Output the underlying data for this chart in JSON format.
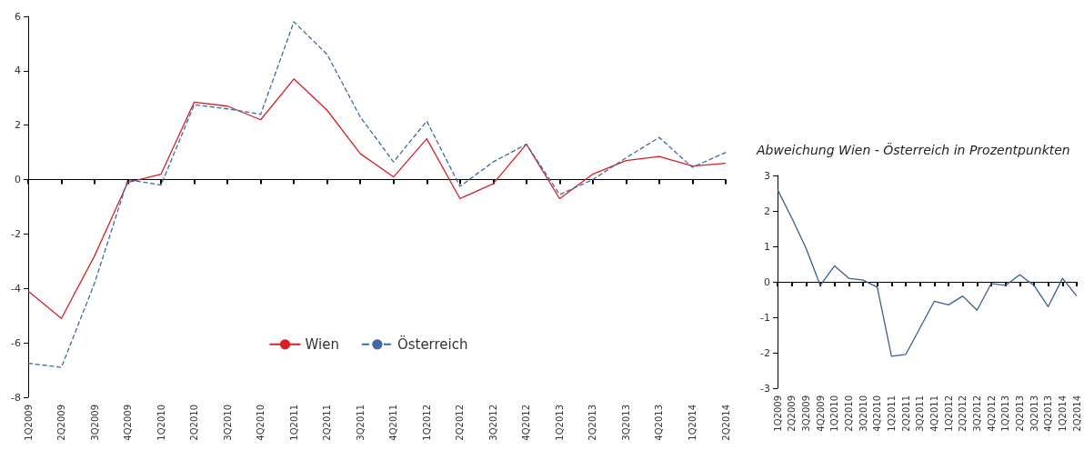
{
  "chart_data": [
    {
      "type": "line",
      "categories": [
        "1Q2009",
        "2Q2009",
        "3Q2009",
        "4Q2009",
        "1Q2010",
        "2Q2010",
        "3Q2010",
        "4Q2010",
        "1Q2011",
        "2Q2011",
        "3Q2011",
        "4Q2011",
        "1Q2012",
        "2Q2012",
        "3Q2012",
        "4Q2012",
        "1Q2013",
        "2Q2013",
        "3Q2013",
        "4Q2013",
        "1Q2014",
        "2Q2014"
      ],
      "series": [
        {
          "name": "Wien",
          "color": "#d42027",
          "line_style": "solid",
          "values": [
            -4.1,
            -5.1,
            -2.8,
            -0.1,
            0.2,
            2.85,
            2.7,
            2.2,
            3.7,
            2.55,
            0.95,
            0.1,
            1.5,
            -0.7,
            -0.15,
            1.3,
            -0.7,
            0.2,
            0.7,
            0.85,
            0.5,
            0.6
          ]
        },
        {
          "name": "Österreich",
          "color": "#3e69a6",
          "line_style": "dashed",
          "values": [
            -6.75,
            -6.9,
            -3.8,
            0.0,
            -0.2,
            2.75,
            2.6,
            2.4,
            5.8,
            4.6,
            2.3,
            0.65,
            2.15,
            -0.25,
            0.65,
            1.3,
            -0.55,
            0.0,
            0.8,
            1.55,
            0.45,
            1.0
          ]
        }
      ],
      "ylim": [
        -8,
        6
      ],
      "yticks": [
        -8,
        -6,
        -4,
        -2,
        0,
        2,
        4,
        6
      ],
      "legend": "bottom",
      "marker": "none"
    },
    {
      "type": "line",
      "title": "Abweichung Wien - Österreich in Prozentpunkten",
      "categories": [
        "1Q2009",
        "2Q2009",
        "3Q2009",
        "4Q2009",
        "1Q2010",
        "2Q2010",
        "3Q2010",
        "4Q2010",
        "1Q2011",
        "2Q2011",
        "3Q2011",
        "4Q2011",
        "1Q2012",
        "2Q2012",
        "3Q2012",
        "4Q2012",
        "1Q2013",
        "2Q2013",
        "3Q2013",
        "4Q2013",
        "1Q2014",
        "2Q2014"
      ],
      "series": [
        {
          "color": "#3a5e92",
          "line_style": "solid",
          "values": [
            2.6,
            1.8,
            0.95,
            -0.1,
            0.45,
            0.1,
            0.05,
            -0.15,
            -2.1,
            -2.05,
            -1.3,
            -0.55,
            -0.65,
            -0.4,
            -0.8,
            -0.05,
            -0.1,
            0.2,
            -0.1,
            -0.7,
            0.1,
            -0.4
          ]
        }
      ],
      "ylim": [
        -3,
        3
      ],
      "yticks": [
        -3,
        -2,
        -1,
        0,
        1,
        2,
        3
      ],
      "legend": false,
      "marker": "none"
    }
  ]
}
